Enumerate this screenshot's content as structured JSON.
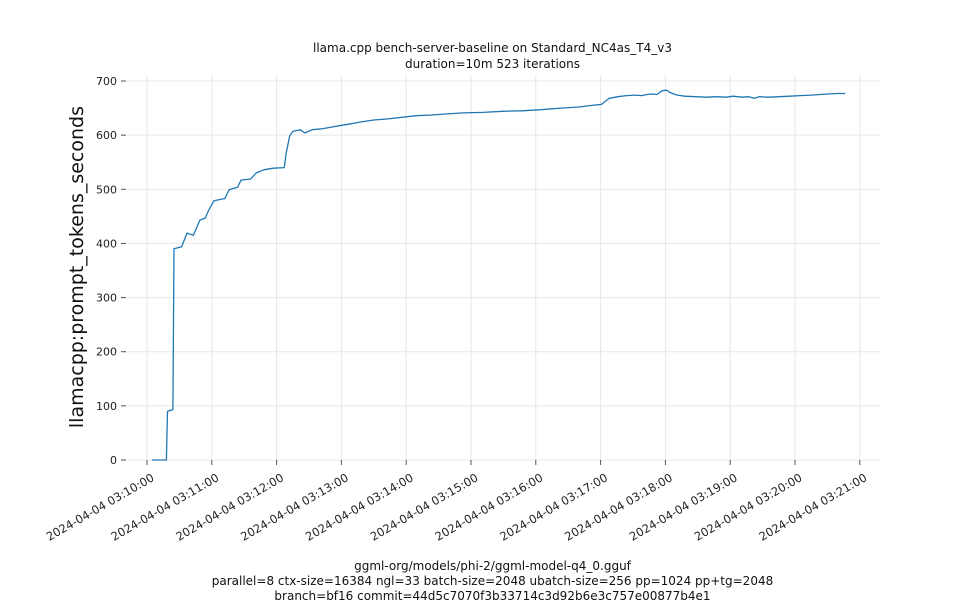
{
  "figure": {
    "title_line1": "llama.cpp bench-server-baseline on Standard_NC4as_T4_v3",
    "title_line2": "duration=10m 523 iterations",
    "footer_line1": "ggml-org/models/phi-2/ggml-model-q4_0.gguf",
    "footer_line2": "parallel=8 ctx-size=16384 ngl=33 batch-size=2048 ubatch-size=256 pp=1024 pp+tg=2048",
    "footer_line3": "branch=bf16 commit=44d5c7070f3b33714c3d92b6e3c757e00877b4e1"
  },
  "chart_data": {
    "type": "line",
    "title": "llama.cpp bench-server-baseline on Standard_NC4as_T4_v3",
    "subtitle": "duration=10m 523 iterations",
    "xlabel": "",
    "ylabel": "llamacpp:prompt_tokens_seconds",
    "ylim": [
      0,
      700
    ],
    "y_ticks": [
      0,
      100,
      200,
      300,
      400,
      500,
      600,
      700
    ],
    "x_tick_labels": [
      "2024-04-04 03:10:00",
      "2024-04-04 03:11:00",
      "2024-04-04 03:12:00",
      "2024-04-04 03:13:00",
      "2024-04-04 03:14:00",
      "2024-04-04 03:15:00",
      "2024-04-04 03:16:00",
      "2024-04-04 03:17:00",
      "2024-04-04 03:18:00",
      "2024-04-04 03:19:00",
      "2024-04-04 03:20:00",
      "2024-04-04 03:21:00"
    ],
    "x_tick_seconds": [
      0,
      60,
      120,
      180,
      240,
      300,
      360,
      420,
      480,
      540,
      600,
      660
    ],
    "x_unit": "seconds since 2024-04-04 03:10:00",
    "grid": true,
    "legend": "none",
    "line_color": "#1f77b4",
    "series": [
      {
        "name": "llamacpp:prompt_tokens_seconds",
        "x": [
          5,
          18,
          19,
          24,
          25,
          32,
          37,
          43,
          49,
          54,
          57,
          62,
          72,
          76,
          84,
          87,
          96,
          101,
          108,
          117,
          127,
          129,
          132,
          135,
          142,
          146,
          153,
          163,
          174,
          186,
          197,
          210,
          223,
          236,
          249,
          262,
          276,
          293,
          311,
          329,
          347,
          365,
          383,
          400,
          412,
          421,
          428,
          436,
          444,
          452,
          458,
          463,
          468,
          472,
          477,
          481,
          485,
          491,
          498,
          508,
          518,
          528,
          536,
          543,
          551,
          557,
          562,
          567,
          575,
          585,
          595,
          605,
          615,
          623,
          631,
          639,
          646
        ],
        "y": [
          0,
          0,
          90,
          93,
          390,
          394,
          419,
          415,
          443,
          447,
          461,
          479,
          483,
          499,
          504,
          517,
          519,
          530,
          536,
          539,
          540,
          568,
          598,
          607,
          610,
          604,
          610,
          612,
          616,
          620,
          624,
          628,
          630,
          633,
          636,
          637,
          639,
          641,
          642,
          644,
          645,
          647,
          650,
          652,
          655,
          657,
          668,
          671,
          673,
          674,
          673,
          675,
          676,
          675,
          682,
          683,
          678,
          674,
          672,
          671,
          670,
          671,
          670,
          672,
          670,
          671,
          668,
          671,
          670,
          671,
          672,
          673,
          674,
          675,
          676,
          677,
          677
        ]
      }
    ]
  }
}
